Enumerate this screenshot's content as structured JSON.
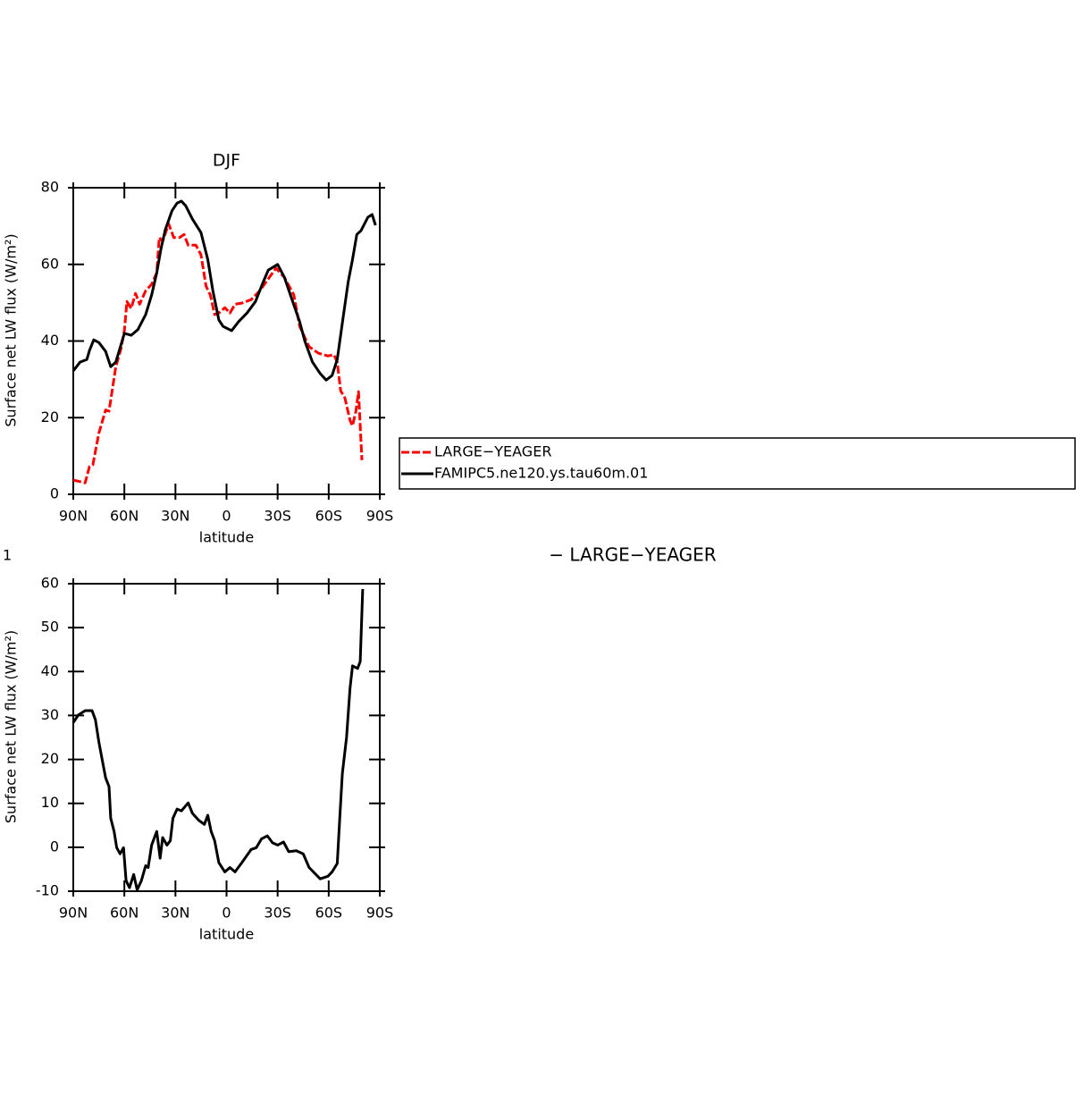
{
  "chart_data": [
    {
      "type": "line",
      "title": "DJF",
      "xlabel": "latitude",
      "ylabel": "Surface net LW flux (W/m²)",
      "xlim": [
        90,
        -90
      ],
      "xticks": [
        {
          "value": 90,
          "label": "90N"
        },
        {
          "value": 60,
          "label": "60N"
        },
        {
          "value": 30,
          "label": "30N"
        },
        0,
        {
          "value": -30,
          "label": "30S"
        },
        {
          "value": -60,
          "label": "60S"
        },
        {
          "value": -90,
          "label": "90S"
        }
      ],
      "ylim": [
        0,
        80
      ],
      "yticks": [
        0,
        20,
        40,
        60,
        80
      ],
      "legend": "right",
      "series": [
        {
          "name": "LARGE−YEAGER",
          "color": "#ff0000",
          "linestyle": "dashed",
          "x": [
            90,
            83,
            80.5,
            78.5,
            75,
            71,
            69,
            65,
            62,
            60,
            58.5,
            56,
            53.5,
            51,
            47.5,
            44,
            41,
            39.5,
            37.5,
            34,
            31,
            27.5,
            25,
            22.5,
            18,
            15,
            12,
            9.5,
            7,
            4.5,
            1,
            -2,
            -5,
            -9,
            -14.5,
            -19.5,
            -24.5,
            -29,
            -34,
            -39.5,
            -43,
            -48.5,
            -54,
            -59.5,
            -63,
            -65,
            -67,
            -69.5,
            -72.5,
            -74,
            -76,
            -77.5,
            -79.5
          ],
          "values": [
            3.7,
            3,
            7.2,
            7.7,
            15.9,
            22,
            21.7,
            33.3,
            38,
            42.7,
            50.3,
            48.5,
            52.4,
            49.6,
            53.1,
            54.8,
            57.8,
            67,
            66,
            70.6,
            67,
            67,
            67.8,
            65,
            65,
            62.5,
            54.3,
            52,
            46.9,
            47.3,
            48.7,
            47.3,
            49.6,
            49.9,
            50.8,
            53.1,
            56.2,
            59,
            56.6,
            52,
            43.8,
            38.5,
            36.8,
            36.1,
            36.4,
            34.5,
            27,
            25.2,
            19.3,
            17.9,
            21.7,
            26.8,
            8.9
          ]
        },
        {
          "name": "FAMIPC5.ne120.ys.tau60m.01",
          "color": "#000000",
          "linestyle": "solid",
          "x": [
            90,
            86,
            82,
            80.5,
            78,
            75,
            71,
            68,
            65,
            60,
            56,
            52,
            47.5,
            44,
            41,
            38.5,
            36,
            32,
            29,
            26.5,
            24,
            20,
            15,
            11,
            8,
            4.5,
            2,
            -3,
            -7,
            -12,
            -17,
            -21,
            -24.5,
            -30,
            -34,
            -37.5,
            -43,
            -46,
            -50.5,
            -55,
            -58.5,
            -62,
            -65,
            -68.5,
            -71.5,
            -74,
            -76.5,
            -79,
            -83,
            -85.5,
            -87.5
          ],
          "values": [
            32.2,
            34.5,
            35.2,
            37.5,
            40.3,
            39.6,
            37.3,
            33.3,
            34.5,
            42,
            41.5,
            43,
            46.9,
            52,
            57.8,
            64,
            69,
            74,
            76,
            76.5,
            75.3,
            71.8,
            68.3,
            61.3,
            53,
            45.5,
            43.8,
            42.7,
            45,
            47.3,
            50.3,
            54.8,
            58.5,
            60,
            56.6,
            52,
            45,
            39.9,
            34.5,
            31.5,
            29.8,
            31,
            35.2,
            46.2,
            55.5,
            61.3,
            67.8,
            68.8,
            72.3,
            73,
            70.2
          ]
        }
      ]
    },
    {
      "type": "line",
      "left_title": "1",
      "title": "− LARGE−YEAGER",
      "xlabel": "latitude",
      "ylabel": "Surface net LW flux (W/m²)",
      "xlim": [
        90,
        -90
      ],
      "xticks": [
        {
          "value": 90,
          "label": "90N"
        },
        {
          "value": 60,
          "label": "60N"
        },
        {
          "value": 30,
          "label": "30N"
        },
        0,
        {
          "value": -30,
          "label": "30S"
        },
        {
          "value": -60,
          "label": "60S"
        },
        {
          "value": -90,
          "label": "90S"
        }
      ],
      "ylim": [
        -10,
        60
      ],
      "yticks": [
        -10,
        0,
        10,
        20,
        30,
        40,
        50,
        60
      ],
      "series": [
        {
          "color": "#000000",
          "linestyle": "solid",
          "x": [
            90,
            87,
            83,
            79,
            77,
            75,
            73,
            71,
            69,
            68,
            66,
            64.5,
            62.5,
            60.5,
            59,
            57,
            54.5,
            52.5,
            50,
            47.5,
            46,
            44,
            41,
            39,
            37.5,
            35,
            33,
            31.5,
            29,
            26.5,
            22.5,
            20,
            16.5,
            13,
            11,
            9,
            7,
            4.5,
            1,
            -2,
            -5,
            -9,
            -14.5,
            -17.5,
            -20.5,
            -24,
            -27,
            -30,
            -33.5,
            -36.5,
            -41,
            -45,
            -48.5,
            -52.5,
            -55,
            -59.5,
            -62,
            -65,
            -66.5,
            -68,
            -70.5,
            -72.5,
            -74,
            -77,
            -78.5,
            -80
          ],
          "values": [
            28.4,
            30.1,
            31.1,
            31.1,
            29,
            24,
            19.9,
            15.8,
            13.8,
            6.6,
            3.6,
            -0.1,
            -1.5,
            -0.1,
            -7.6,
            -9.2,
            -6.2,
            -9.7,
            -7.6,
            -4.2,
            -4.6,
            0.5,
            3.6,
            -2.5,
            2.2,
            0.5,
            1.5,
            6.6,
            8.7,
            8.3,
            10.1,
            7.7,
            6.2,
            5.2,
            7.3,
            3.6,
            1.5,
            -3.5,
            -5.6,
            -4.6,
            -5.6,
            -3.5,
            -0.5,
            -0.1,
            1.9,
            2.6,
            1,
            0.5,
            1.2,
            -1,
            -0.8,
            -1.5,
            -4.6,
            -6.2,
            -7.2,
            -6.6,
            -5.6,
            -3.7,
            6.6,
            16.8,
            25,
            36.2,
            41.3,
            40.7,
            42.3,
            58.8
          ]
        }
      ]
    }
  ]
}
